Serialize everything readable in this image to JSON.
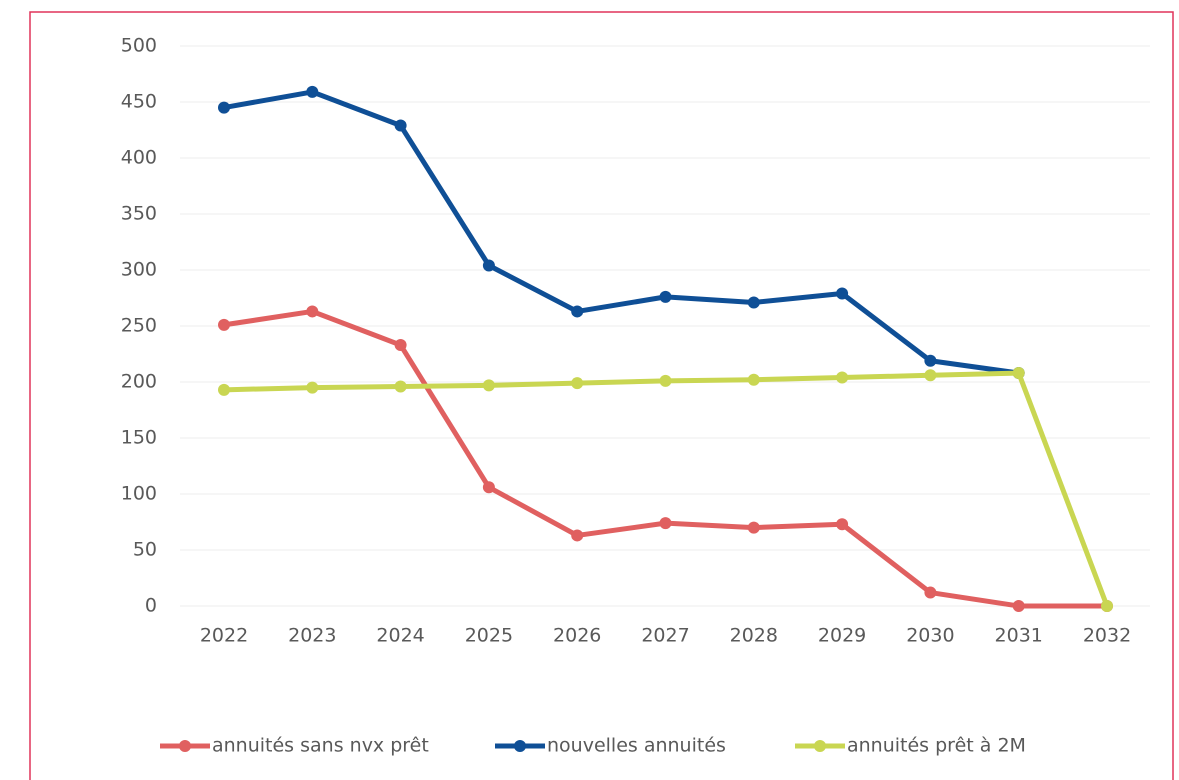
{
  "chart_data": {
    "type": "line",
    "categories": [
      "2022",
      "2023",
      "2024",
      "2025",
      "2026",
      "2027",
      "2028",
      "2029",
      "2030",
      "2031",
      "2032"
    ],
    "series": [
      {
        "name": "annuités sans nvx prêt",
        "color": "#e06060",
        "values": [
          251,
          263,
          233,
          106,
          63,
          74,
          70,
          73,
          12,
          0,
          0
        ]
      },
      {
        "name": "nouvelles annuités",
        "color": "#0f4f96",
        "values": [
          445,
          459,
          429,
          304,
          263,
          276,
          271,
          279,
          219,
          208,
          null
        ]
      },
      {
        "name": "annuités prêt à 2M",
        "color": "#c9d652",
        "values": [
          193,
          195,
          196,
          197,
          199,
          201,
          202,
          204,
          206,
          208,
          0
        ]
      }
    ],
    "ylim": [
      0,
      500
    ],
    "yticks": [
      0,
      50,
      100,
      150,
      200,
      250,
      300,
      350,
      400,
      450,
      500
    ],
    "grid": true,
    "legend": "bottom"
  }
}
